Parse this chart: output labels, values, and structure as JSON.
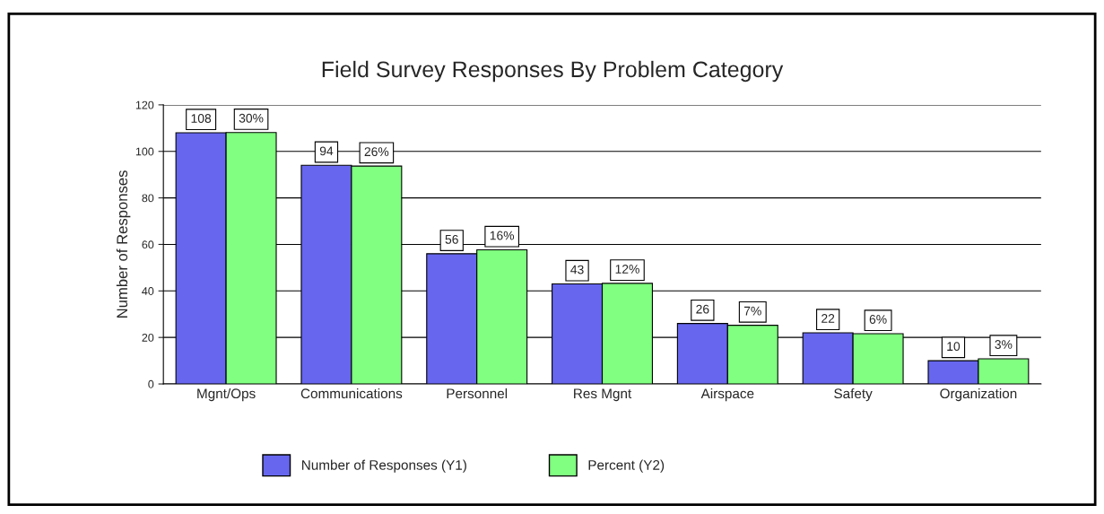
{
  "chart_data": {
    "type": "bar",
    "title": "Field Survey Responses By Problem Category",
    "ylabel": "Number of Responses",
    "categories": [
      "Mgnt/Ops",
      "Communications",
      "Personnel",
      "Res Mgnt",
      "Airspace",
      "Safety",
      "Organization"
    ],
    "series": [
      {
        "name": "Number of Responses (Y1)",
        "color": "#6666ee",
        "values": [
          108,
          94,
          56,
          43,
          26,
          22,
          10
        ],
        "value_labels": [
          "108",
          "94",
          "56",
          "43",
          "26",
          "22",
          "10"
        ]
      },
      {
        "name": "Percent (Y2)",
        "color": "#80ff80",
        "axis": "y2",
        "values": [
          30,
          26,
          16,
          12,
          7,
          6,
          3
        ],
        "value_labels": [
          "30%",
          "26%",
          "16%",
          "12%",
          "7%",
          "6%",
          "3%"
        ]
      }
    ],
    "ylim": [
      0,
      120
    ],
    "yticks": [
      0,
      20,
      40,
      60,
      80,
      100,
      120
    ],
    "y2lim": [
      0,
      33.3
    ],
    "grid": "y",
    "legend": "bottom"
  }
}
